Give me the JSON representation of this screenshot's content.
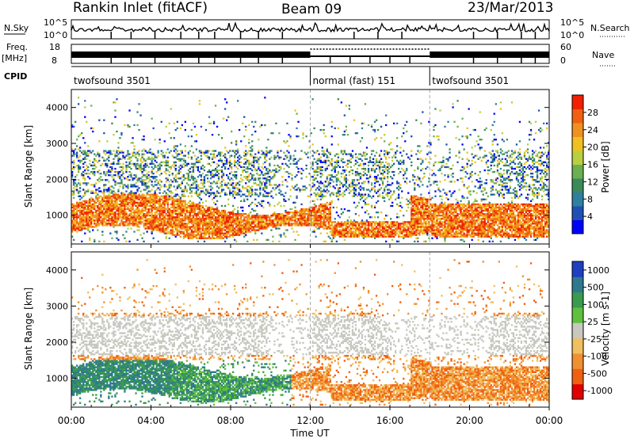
{
  "header": {
    "station": "Rankin Inlet (fitACF)",
    "beam": "Beam 09",
    "date": "23/Mar/2013"
  },
  "strip_labels": {
    "nsky": "N.Sky",
    "nsky_top": "10^5",
    "nsky_bottom": "10^0",
    "nsearch": "N.Search",
    "nsearch_top": "10^5",
    "nsearch_bottom": "10^0",
    "freq": "Freq.",
    "freq_unit": "[MHz]",
    "freq_top": "18",
    "freq_bottom": "8",
    "nave": "Nave",
    "nave_top": "60",
    "nave_bottom": "0",
    "cpid": "CPID"
  },
  "cpid_segments": [
    {
      "label": "twofsound 3501",
      "start_h": 0,
      "end_h": 12
    },
    {
      "label": "normal (fast) 151",
      "start_h": 12,
      "end_h": 18
    },
    {
      "label": "twofsound 3501",
      "start_h": 18,
      "end_h": 24
    }
  ],
  "colors": {
    "power_scale": [
      "#0000ff",
      "#1f4fb4",
      "#2e7fa0",
      "#3a8a5a",
      "#6bb050",
      "#b8d040",
      "#f0c020",
      "#f09020",
      "#f06010",
      "#f02000"
    ],
    "velocity_scale": [
      "#1f3fc0",
      "#2e7a8c",
      "#3a9a50",
      "#60c040",
      "#c8c8c0",
      "#f0c060",
      "#f09030",
      "#f06010",
      "#e00000"
    ]
  },
  "chart_data": [
    {
      "type": "heatmap",
      "name": "power",
      "xlabel": "Time UT",
      "ylabel": "Slant Range [km]",
      "xlim": [
        0,
        24
      ],
      "ylim": [
        200,
        4500
      ],
      "xticks": [
        "00:00",
        "04:00",
        "08:00",
        "12:00",
        "16:00",
        "20:00",
        "00:00"
      ],
      "yticks": [
        1000,
        2000,
        3000,
        4000
      ],
      "colorbar_label": "Power [dB]",
      "colorbar_ticks": [
        "4",
        "8",
        "12",
        "16",
        "20",
        "24",
        "28"
      ],
      "colorbar_range": [
        0,
        32
      ]
    },
    {
      "type": "heatmap",
      "name": "velocity",
      "xlabel": "Time UT",
      "ylabel": "Slant Range [km]",
      "xlim": [
        0,
        24
      ],
      "ylim": [
        200,
        4500
      ],
      "xticks": [
        "00:00",
        "04:00",
        "08:00",
        "12:00",
        "16:00",
        "20:00",
        "00:00"
      ],
      "yticks": [
        1000,
        2000,
        3000,
        4000
      ],
      "colorbar_label": "Velocity [m s-1]",
      "colorbar_ticks": [
        "1000",
        "500",
        "100",
        "25",
        "-25",
        "-100",
        "-500",
        "-1000"
      ]
    }
  ]
}
